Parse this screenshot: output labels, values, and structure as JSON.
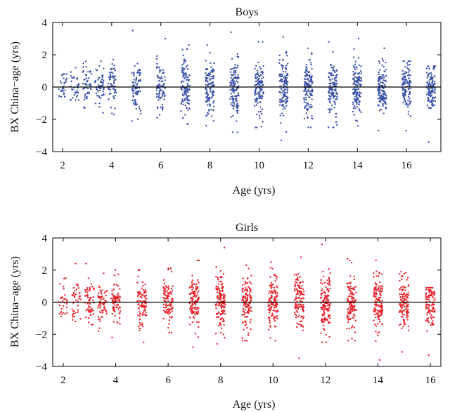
{
  "chart_data": [
    {
      "type": "scatter",
      "title": "Boys",
      "xlabel": "Age (yrs)",
      "ylabel": "BX China−age (yrs)",
      "xlim": [
        1.6,
        17.4
      ],
      "ylim": [
        -4,
        4
      ],
      "xticks": [
        2,
        4,
        6,
        8,
        10,
        12,
        14,
        16
      ],
      "yticks": [
        -4,
        -2,
        0,
        2,
        4
      ],
      "reference_line_y": 0,
      "grid": false,
      "color": "#3b52a8",
      "series": [
        {
          "groups": [
            {
              "age": 2,
              "n": 30,
              "spread": 0.55,
              "min": -0.6,
              "max": 0.8
            },
            {
              "age": 2.5,
              "n": 35,
              "spread": 0.6,
              "min": -0.8,
              "max": 1.2
            },
            {
              "age": 3,
              "n": 50,
              "spread": 0.7,
              "min": -1.3,
              "max": 1.6
            },
            {
              "age": 3.5,
              "n": 55,
              "spread": 0.75,
              "min": -1.6,
              "max": 1.6
            },
            {
              "age": 4,
              "n": 60,
              "spread": 0.75,
              "min": -1.7,
              "max": 1.7
            },
            {
              "age": 5,
              "n": 80,
              "spread": 0.85,
              "min": -2.1,
              "max": 3.5
            },
            {
              "age": 6,
              "n": 85,
              "spread": 0.95,
              "min": -1.9,
              "max": 3.0
            },
            {
              "age": 7,
              "n": 110,
              "spread": 1.0,
              "min": -2.3,
              "max": 2.6
            },
            {
              "age": 8,
              "n": 120,
              "spread": 1.0,
              "min": -2.4,
              "max": 2.6
            },
            {
              "age": 9,
              "n": 125,
              "spread": 1.05,
              "min": -2.8,
              "max": 3.4
            },
            {
              "age": 10,
              "n": 120,
              "spread": 1.0,
              "min": -2.5,
              "max": 2.8
            },
            {
              "age": 11,
              "n": 130,
              "spread": 1.05,
              "min": -3.3,
              "max": 3.1
            },
            {
              "age": 12,
              "n": 135,
              "spread": 1.05,
              "min": -2.5,
              "max": 2.4
            },
            {
              "age": 13,
              "n": 120,
              "spread": 1.0,
              "min": -2.5,
              "max": 2.8
            },
            {
              "age": 14,
              "n": 130,
              "spread": 1.05,
              "min": -2.4,
              "max": 3.0
            },
            {
              "age": 15,
              "n": 125,
              "spread": 1.0,
              "min": -2.7,
              "max": 2.4
            },
            {
              "age": 16,
              "n": 115,
              "spread": 0.95,
              "min": -2.7,
              "max": 1.6
            },
            {
              "age": 17,
              "n": 120,
              "spread": 0.75,
              "min": -3.4,
              "max": 1.3
            }
          ]
        }
      ]
    },
    {
      "type": "scatter",
      "title": "Girls",
      "xlabel": "Age (yrs)",
      "ylabel": "BX China−age (yrs)",
      "xlim": [
        1.6,
        16.4
      ],
      "ylim": [
        -4,
        4
      ],
      "xticks": [
        2,
        4,
        6,
        8,
        10,
        12,
        14,
        16
      ],
      "yticks": [
        -4,
        -2,
        0,
        2,
        4
      ],
      "reference_line_y": 0,
      "grid": false,
      "color": "#e8222b",
      "series": [
        {
          "groups": [
            {
              "age": 2,
              "n": 30,
              "spread": 0.6,
              "min": -0.9,
              "max": 1.5
            },
            {
              "age": 2.5,
              "n": 40,
              "spread": 0.65,
              "min": -1.2,
              "max": 2.4
            },
            {
              "age": 3,
              "n": 55,
              "spread": 0.75,
              "min": -1.4,
              "max": 2.4
            },
            {
              "age": 3.5,
              "n": 65,
              "spread": 0.8,
              "min": -1.8,
              "max": 1.8
            },
            {
              "age": 4,
              "n": 75,
              "spread": 0.85,
              "min": -2.2,
              "max": 2.0
            },
            {
              "age": 5,
              "n": 90,
              "spread": 0.9,
              "min": -2.5,
              "max": 2.0
            },
            {
              "age": 6,
              "n": 100,
              "spread": 0.9,
              "min": -1.9,
              "max": 2.1
            },
            {
              "age": 7,
              "n": 120,
              "spread": 0.95,
              "min": -2.8,
              "max": 2.6
            },
            {
              "age": 8,
              "n": 135,
              "spread": 1.05,
              "min": -2.6,
              "max": 3.4
            },
            {
              "age": 9,
              "n": 125,
              "spread": 1.0,
              "min": -2.4,
              "max": 2.3
            },
            {
              "age": 10,
              "n": 130,
              "spread": 1.0,
              "min": -2.4,
              "max": 2.5
            },
            {
              "age": 11,
              "n": 125,
              "spread": 1.0,
              "min": -3.5,
              "max": 2.8
            },
            {
              "age": 12,
              "n": 135,
              "spread": 1.05,
              "min": -2.5,
              "max": 3.6
            },
            {
              "age": 13,
              "n": 125,
              "spread": 1.05,
              "min": -2.4,
              "max": 2.7
            },
            {
              "age": 14,
              "n": 130,
              "spread": 1.1,
              "min": -3.6,
              "max": 2.6
            },
            {
              "age": 15,
              "n": 120,
              "spread": 1.0,
              "min": -3.1,
              "max": 1.9
            },
            {
              "age": 16,
              "n": 115,
              "spread": 0.9,
              "min": -3.3,
              "max": 0.9
            }
          ]
        }
      ]
    }
  ]
}
